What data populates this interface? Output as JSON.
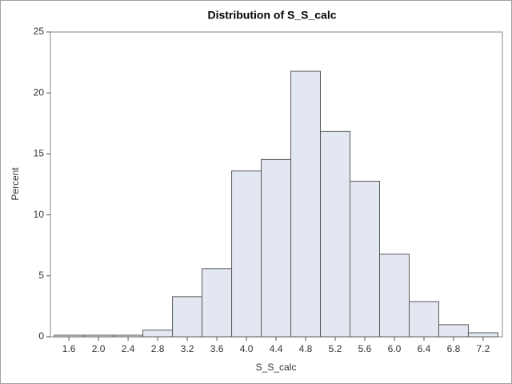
{
  "chart_data": {
    "type": "histogram",
    "title": "Distribution of S_S_calc",
    "x_label": "S_S_calc",
    "y_label": "Percent",
    "bins": [
      1.4,
      1.8,
      2.2,
      2.6,
      3.0,
      3.4,
      3.8,
      4.2,
      4.6,
      5.0,
      5.4,
      5.8,
      6.2,
      6.6,
      7.0,
      7.4
    ],
    "values": [
      0.13,
      0.13,
      0.13,
      0.55,
      3.29,
      5.59,
      13.6,
      14.54,
      21.78,
      16.84,
      12.76,
      6.78,
      2.89,
      0.99,
      0.33
    ],
    "color": "#e3e7f1",
    "edge_color": "#5a5a5a",
    "xlim": [
      1.35,
      7.46
    ],
    "xticks": [
      1.6,
      {
        "value": 2.0,
        "label": "2.0"
      },
      2.4,
      2.8,
      3.2,
      3.6,
      {
        "value": 4.0,
        "label": "4.0"
      },
      4.4,
      4.8,
      5.2,
      5.6,
      {
        "value": 6.0,
        "label": "6.0"
      },
      6.4,
      6.8,
      7.2
    ],
    "ylim": [
      0,
      25
    ],
    "yticks": [
      0,
      5,
      10,
      15,
      20,
      25
    ],
    "grid": false
  }
}
